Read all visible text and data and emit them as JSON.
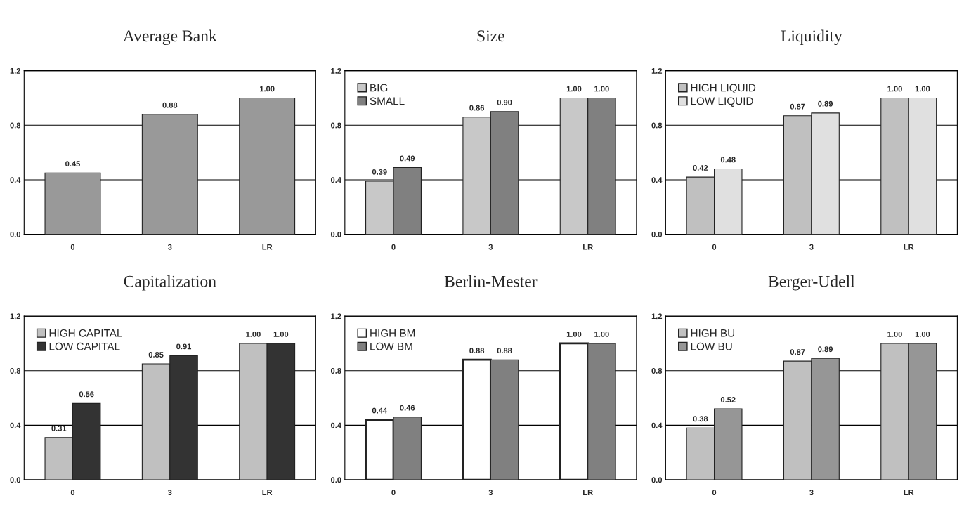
{
  "chart_data": [
    {
      "type": "bar",
      "title": "Average Bank",
      "categories": [
        "0",
        "3",
        "LR"
      ],
      "series": [
        {
          "color": "#999999",
          "values": [
            0.45,
            0.88,
            1.0
          ],
          "value_labels": [
            "0.45",
            "0.88",
            "1.00"
          ]
        }
      ],
      "ylim": [
        0,
        1.2
      ],
      "yticks": [
        {
          "value": 0,
          "label": "0.0"
        },
        {
          "value": 0.4,
          "label": "0.4"
        },
        {
          "value": 0.8,
          "label": "0.8"
        },
        {
          "value": 1.2,
          "label": "1.2"
        }
      ],
      "grid": "y"
    },
    {
      "type": "bar",
      "title": "Size",
      "categories": [
        "0",
        "3",
        "LR"
      ],
      "series": [
        {
          "name": "BIG",
          "color": "#c8c8c8",
          "values": [
            0.39,
            0.86,
            1.0
          ],
          "value_labels": [
            "0.39",
            "0.86",
            "1.00"
          ]
        },
        {
          "name": "SMALL",
          "color": "#808080",
          "values": [
            0.49,
            0.9,
            1.0
          ],
          "value_labels": [
            "0.49",
            "0.90",
            "1.00"
          ]
        }
      ],
      "ylim": [
        0,
        1.2
      ],
      "yticks": [
        {
          "value": 0,
          "label": "0.0"
        },
        {
          "value": 0.4,
          "label": "0.4"
        },
        {
          "value": 0.8,
          "label": "0.8"
        },
        {
          "value": 1.2,
          "label": "1.2"
        }
      ],
      "grid": "y",
      "legend": "top left"
    },
    {
      "type": "bar",
      "title": "Liquidity",
      "categories": [
        "0",
        "3",
        "LR"
      ],
      "series": [
        {
          "name": "HIGH LIQUID",
          "color": "#c0c0c0",
          "values": [
            0.42,
            0.87,
            1.0
          ],
          "value_labels": [
            "0.42",
            "0.87",
            "1.00"
          ]
        },
        {
          "name": "LOW LIQUID",
          "color": "#e0e0e0",
          "values": [
            0.48,
            0.89,
            1.0
          ],
          "value_labels": [
            "0.48",
            "0.89",
            "1.00"
          ]
        }
      ],
      "ylim": [
        0,
        1.2
      ],
      "yticks": [
        {
          "value": 0,
          "label": "0.0"
        },
        {
          "value": 0.4,
          "label": "0.4"
        },
        {
          "value": 0.8,
          "label": "0.8"
        },
        {
          "value": 1.2,
          "label": "1.2"
        }
      ],
      "grid": "y",
      "legend": "top left"
    },
    {
      "type": "bar",
      "title": "Capitalization",
      "categories": [
        "0",
        "3",
        "LR"
      ],
      "series": [
        {
          "name": "HIGH CAPITAL",
          "color": "#c0c0c0",
          "values": [
            0.31,
            0.85,
            1.0
          ],
          "value_labels": [
            "0.31",
            "0.85",
            "1.00"
          ]
        },
        {
          "name": "LOW CAPITAL",
          "color": "#333333",
          "values": [
            0.56,
            0.91,
            1.0
          ],
          "value_labels": [
            "0.56",
            "0.91",
            "1.00"
          ]
        }
      ],
      "ylim": [
        0,
        1.2
      ],
      "yticks": [
        {
          "value": 0,
          "label": "0.0"
        },
        {
          "value": 0.4,
          "label": "0.4"
        },
        {
          "value": 0.8,
          "label": "0.8"
        },
        {
          "value": 1.2,
          "label": "1.2"
        }
      ],
      "grid": "y",
      "legend": "top left"
    },
    {
      "type": "bar",
      "title": "Berlin-Mester",
      "categories": [
        "0",
        "3",
        "LR"
      ],
      "series": [
        {
          "name": "HIGH BM",
          "color": "#ffffff",
          "values": [
            0.44,
            0.88,
            1.0
          ],
          "value_labels": [
            "0.44",
            "0.88",
            "1.00"
          ]
        },
        {
          "name": "LOW BM",
          "color": "#808080",
          "values": [
            0.46,
            0.88,
            1.0
          ],
          "value_labels": [
            "0.46",
            "0.88",
            "1.00"
          ]
        }
      ],
      "ylim": [
        0,
        1.2
      ],
      "yticks": [
        {
          "value": 0,
          "label": "0.0"
        },
        {
          "value": 0.4,
          "label": "0.4"
        },
        {
          "value": 0.8,
          "label": "0.8"
        },
        {
          "value": 1.2,
          "label": "1.2"
        }
      ],
      "grid": "y",
      "legend": "top left"
    },
    {
      "type": "bar",
      "title": "Berger-Udell",
      "categories": [
        "0",
        "3",
        "LR"
      ],
      "series": [
        {
          "name": "HIGH BU",
          "color": "#c0c0c0",
          "values": [
            0.38,
            0.87,
            1.0
          ],
          "value_labels": [
            "0.38",
            "0.87",
            "1.00"
          ]
        },
        {
          "name": "LOW BU",
          "color": "#969696",
          "values": [
            0.52,
            0.89,
            1.0
          ],
          "value_labels": [
            "0.52",
            "0.89",
            "1.00"
          ]
        }
      ],
      "ylim": [
        0,
        1.2
      ],
      "yticks": [
        {
          "value": 0,
          "label": "0.0"
        },
        {
          "value": 0.4,
          "label": "0.4"
        },
        {
          "value": 0.8,
          "label": "0.8"
        },
        {
          "value": 1.2,
          "label": "1.2"
        }
      ],
      "grid": "y",
      "legend": "top left"
    }
  ]
}
